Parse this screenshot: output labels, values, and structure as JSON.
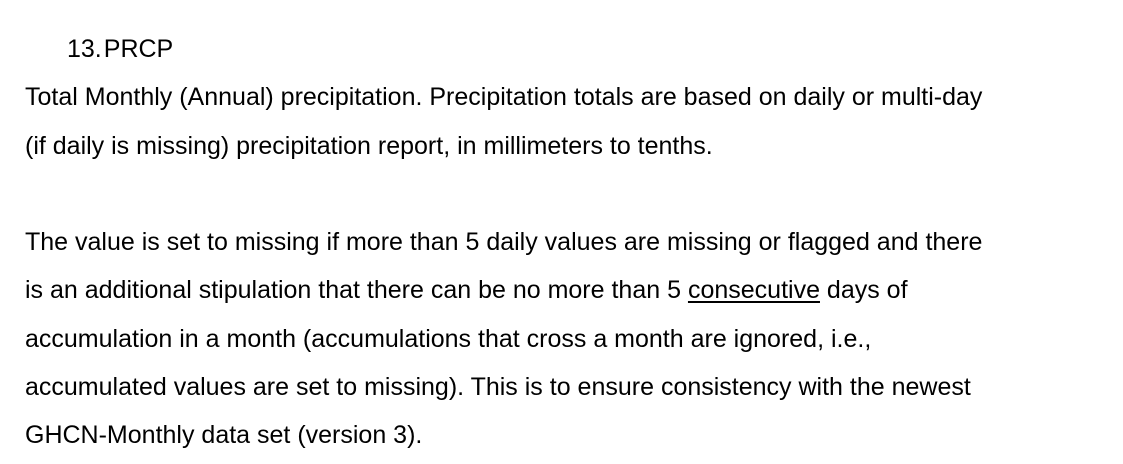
{
  "section": {
    "number": "13.",
    "title": "PRCP"
  },
  "paragraph1": {
    "lines": [
      "Total Monthly (Annual) precipitation. Precipitation totals are based on daily or multi-day",
      "(if daily is missing) precipitation report, in millimeters to tenths."
    ]
  },
  "paragraph2": {
    "line1": "The value is set to missing if more than 5 daily values are missing or flagged and there",
    "line2_before": "is an additional stipulation that there can be no more than 5 ",
    "line2_underlined": "consecutive",
    "line2_after": " days of",
    "line3": "accumulation in a month (accumulations that cross a month are ignored, i.e.,",
    "line4": "accumulated values are set to missing). This is to ensure consistency with the newest",
    "line5": "GHCN-Monthly data set (version 3)."
  }
}
